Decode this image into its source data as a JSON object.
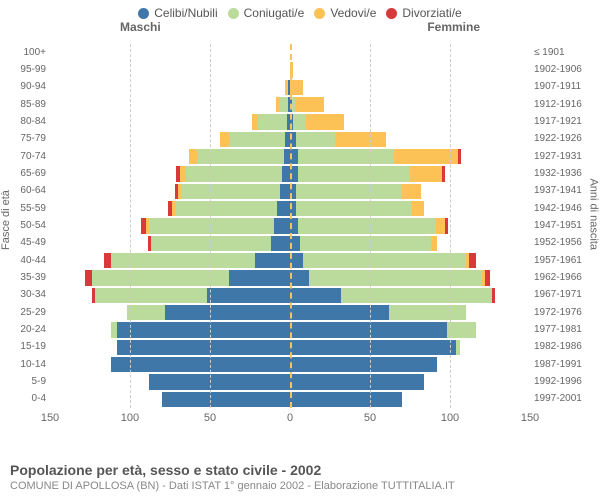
{
  "legend": {
    "items": [
      {
        "label": "Celibi/Nubili",
        "color": "#3f78a8"
      },
      {
        "label": "Coniugati/e",
        "color": "#badb9b"
      },
      {
        "label": "Vedovi/e",
        "color": "#fcc255"
      },
      {
        "label": "Divorziati/e",
        "color": "#d83a3b"
      }
    ]
  },
  "gender_labels": {
    "male": "Maschi",
    "female": "Femmine"
  },
  "y_axis_left_title": "Fasce di età",
  "y_axis_right_title": "Anni di nascita",
  "x_axis": {
    "max": 150,
    "ticks": [
      150,
      100,
      50,
      0,
      50,
      100,
      150
    ]
  },
  "colors": {
    "single": "#3f78a8",
    "married": "#badb9b",
    "widowed": "#fcc255",
    "divorced": "#d83a3b",
    "grid": "#cccccc",
    "center": "#f3c45f",
    "bg": "#ffffff"
  },
  "rows": [
    {
      "age": "100+",
      "birth": "≤ 1901",
      "m": {
        "single": 0,
        "married": 0,
        "widowed": 0,
        "divorced": 0
      },
      "f": {
        "single": 0,
        "married": 0,
        "widowed": 0,
        "divorced": 0
      }
    },
    {
      "age": "95-99",
      "birth": "1902-1906",
      "m": {
        "single": 0,
        "married": 0,
        "widowed": 0,
        "divorced": 0
      },
      "f": {
        "single": 0,
        "married": 0,
        "widowed": 2,
        "divorced": 0
      }
    },
    {
      "age": "90-94",
      "birth": "1907-1911",
      "m": {
        "single": 1,
        "married": 1,
        "widowed": 1,
        "divorced": 0
      },
      "f": {
        "single": 0,
        "married": 0,
        "widowed": 8,
        "divorced": 0
      }
    },
    {
      "age": "85-89",
      "birth": "1912-1916",
      "m": {
        "single": 1,
        "married": 6,
        "widowed": 2,
        "divorced": 0
      },
      "f": {
        "single": 1,
        "married": 2,
        "widowed": 18,
        "divorced": 0
      }
    },
    {
      "age": "80-84",
      "birth": "1917-1921",
      "m": {
        "single": 2,
        "married": 18,
        "widowed": 4,
        "divorced": 0
      },
      "f": {
        "single": 2,
        "married": 8,
        "widowed": 24,
        "divorced": 0
      }
    },
    {
      "age": "75-79",
      "birth": "1922-1926",
      "m": {
        "single": 3,
        "married": 35,
        "widowed": 6,
        "divorced": 0
      },
      "f": {
        "single": 4,
        "married": 24,
        "widowed": 32,
        "divorced": 0
      }
    },
    {
      "age": "70-74",
      "birth": "1927-1931",
      "m": {
        "single": 4,
        "married": 54,
        "widowed": 5,
        "divorced": 0
      },
      "f": {
        "single": 5,
        "married": 60,
        "widowed": 40,
        "divorced": 2
      }
    },
    {
      "age": "65-69",
      "birth": "1932-1936",
      "m": {
        "single": 5,
        "married": 60,
        "widowed": 4,
        "divorced": 2
      },
      "f": {
        "single": 5,
        "married": 70,
        "widowed": 20,
        "divorced": 2
      }
    },
    {
      "age": "60-64",
      "birth": "1937-1941",
      "m": {
        "single": 6,
        "married": 62,
        "widowed": 2,
        "divorced": 2
      },
      "f": {
        "single": 4,
        "married": 66,
        "widowed": 12,
        "divorced": 0
      }
    },
    {
      "age": "55-59",
      "birth": "1942-1946",
      "m": {
        "single": 8,
        "married": 64,
        "widowed": 2,
        "divorced": 2
      },
      "f": {
        "single": 4,
        "married": 72,
        "widowed": 8,
        "divorced": 0
      }
    },
    {
      "age": "50-54",
      "birth": "1947-1951",
      "m": {
        "single": 10,
        "married": 78,
        "widowed": 2,
        "divorced": 3
      },
      "f": {
        "single": 5,
        "married": 86,
        "widowed": 6,
        "divorced": 2
      }
    },
    {
      "age": "45-49",
      "birth": "1952-1956",
      "m": {
        "single": 12,
        "married": 74,
        "widowed": 1,
        "divorced": 2
      },
      "f": {
        "single": 6,
        "married": 82,
        "widowed": 4,
        "divorced": 0
      }
    },
    {
      "age": "40-44",
      "birth": "1957-1961",
      "m": {
        "single": 22,
        "married": 90,
        "widowed": 0,
        "divorced": 4
      },
      "f": {
        "single": 8,
        "married": 102,
        "widowed": 2,
        "divorced": 4
      }
    },
    {
      "age": "35-39",
      "birth": "1962-1966",
      "m": {
        "single": 38,
        "married": 86,
        "widowed": 0,
        "divorced": 4
      },
      "f": {
        "single": 12,
        "married": 108,
        "widowed": 2,
        "divorced": 3
      }
    },
    {
      "age": "30-34",
      "birth": "1967-1971",
      "m": {
        "single": 52,
        "married": 70,
        "widowed": 0,
        "divorced": 2
      },
      "f": {
        "single": 32,
        "married": 94,
        "widowed": 0,
        "divorced": 2
      }
    },
    {
      "age": "25-29",
      "birth": "1972-1976",
      "m": {
        "single": 78,
        "married": 24,
        "widowed": 0,
        "divorced": 0
      },
      "f": {
        "single": 62,
        "married": 48,
        "widowed": 0,
        "divorced": 0
      }
    },
    {
      "age": "20-24",
      "birth": "1977-1981",
      "m": {
        "single": 108,
        "married": 4,
        "widowed": 0,
        "divorced": 0
      },
      "f": {
        "single": 98,
        "married": 18,
        "widowed": 0,
        "divorced": 0
      }
    },
    {
      "age": "15-19",
      "birth": "1982-1986",
      "m": {
        "single": 108,
        "married": 0,
        "widowed": 0,
        "divorced": 0
      },
      "f": {
        "single": 104,
        "married": 2,
        "widowed": 0,
        "divorced": 0
      }
    },
    {
      "age": "10-14",
      "birth": "1987-1991",
      "m": {
        "single": 112,
        "married": 0,
        "widowed": 0,
        "divorced": 0
      },
      "f": {
        "single": 92,
        "married": 0,
        "widowed": 0,
        "divorced": 0
      }
    },
    {
      "age": "5-9",
      "birth": "1992-1996",
      "m": {
        "single": 88,
        "married": 0,
        "widowed": 0,
        "divorced": 0
      },
      "f": {
        "single": 84,
        "married": 0,
        "widowed": 0,
        "divorced": 0
      }
    },
    {
      "age": "0-4",
      "birth": "1997-2001",
      "m": {
        "single": 80,
        "married": 0,
        "widowed": 0,
        "divorced": 0
      },
      "f": {
        "single": 70,
        "married": 0,
        "widowed": 0,
        "divorced": 0
      }
    }
  ],
  "caption": {
    "title": "Popolazione per età, sesso e stato civile - 2002",
    "subtitle": "COMUNE DI APOLLOSA (BN) - Dati ISTAT 1° gennaio 2002 - Elaborazione TUTTITALIA.IT"
  }
}
